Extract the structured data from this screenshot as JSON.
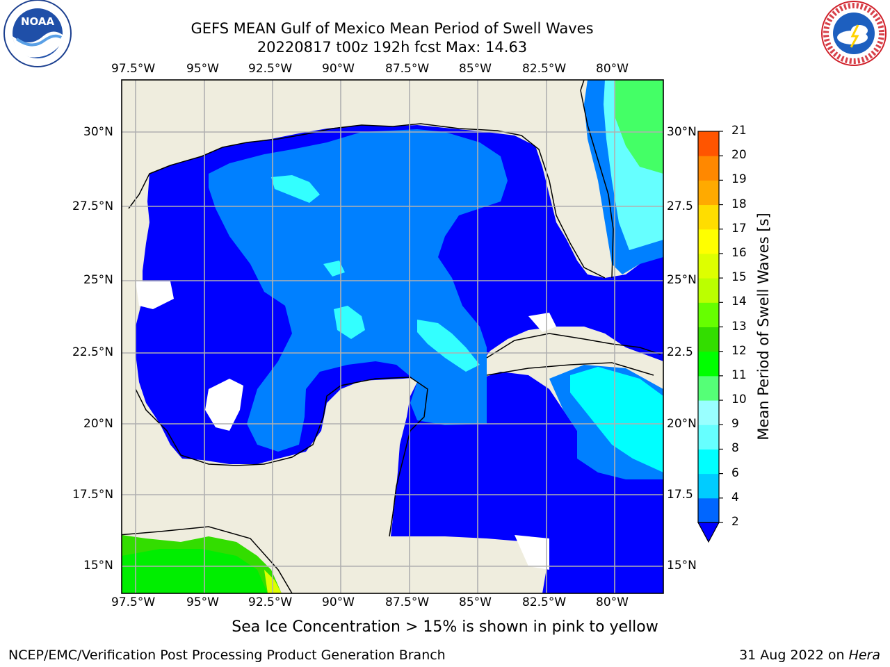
{
  "header": {
    "title_line1": "GEFS MEAN Gulf of Mexico Mean Period of Swell Waves",
    "title_line2": "20220817 t00z 192h fcst   Max: 14.63"
  },
  "logos": {
    "left": "noaa-logo",
    "right": "national-weather-service-logo",
    "left_text": "NOAA",
    "right_text": "NATIONAL WEATHER SERVICE"
  },
  "map": {
    "lon_labels": [
      "97.5°W",
      "95°W",
      "92.5°W",
      "90°W",
      "87.5°W",
      "85°W",
      "82.5°W",
      "80°W"
    ],
    "lat_labels_left": [
      "30°N",
      "27.5°N",
      "25°N",
      "22.5°N",
      "20°N",
      "17.5°N",
      "15°N"
    ],
    "lat_labels_right": [
      "30°N",
      "27.5",
      "25°N",
      "22.5",
      "20°N",
      "17.5",
      "15°N"
    ],
    "grid": true,
    "land_color": "#efedde",
    "ocean_missing_color": "#ffffff"
  },
  "colorbar": {
    "title": "Mean Period of Swell Waves [s]",
    "ticks": [
      "2",
      "4",
      "6",
      "8",
      "9",
      "10",
      "11",
      "12",
      "13",
      "14",
      "15",
      "16",
      "17",
      "18",
      "19",
      "20",
      "21"
    ],
    "colors": [
      "#0033ff",
      "#0066ff",
      "#00ccff",
      "#00ffff",
      "#66ffff",
      "#99ffff",
      "#55ff77",
      "#00ff00",
      "#33dd00",
      "#66ff00",
      "#bbff00",
      "#ddff00",
      "#ffff00",
      "#ffdd00",
      "#ffaa00",
      "#ff8800",
      "#ff5500",
      "#ff2200",
      "#ff0000"
    ],
    "extend_color": "#0000ff"
  },
  "note": "Sea Ice Concentration > 15% is shown in pink to yellow",
  "footer": {
    "left": "NCEP/EMC/Verification Post Processing Product Generation Branch",
    "right_prefix": "31 Aug 2022 on ",
    "right_host": "Hera"
  }
}
